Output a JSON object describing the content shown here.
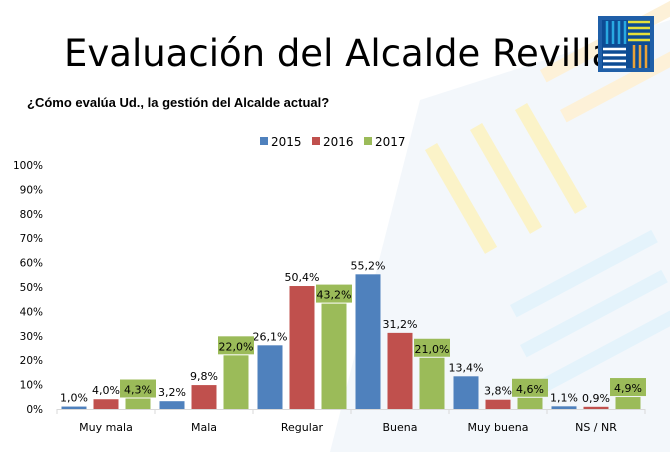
{
  "chart_data": {
    "type": "bar",
    "title": "Evaluación del Alcalde Revilla",
    "subtitle": "¿Cómo evalúa Ud., la gestión del Alcalde actual?",
    "categories": [
      "Muy mala",
      "Mala",
      "Regular",
      "Buena",
      "Muy buena",
      "NS / NR"
    ],
    "series": [
      {
        "name": "2015",
        "color": "#4F81BD",
        "values": [
          1.0,
          3.2,
          26.1,
          55.2,
          13.4,
          1.1
        ],
        "labels": [
          "1,0%",
          "3,2%",
          "26,1%",
          "55,2%",
          "13,4%",
          "1,1%"
        ]
      },
      {
        "name": "2016",
        "color": "#C0504D",
        "values": [
          4.0,
          9.8,
          50.4,
          31.2,
          3.8,
          0.9
        ],
        "labels": [
          "4,0%",
          "9,8%",
          "50,4%",
          "31,2%",
          "3,8%",
          "0,9%"
        ]
      },
      {
        "name": "2017",
        "color": "#9BBB59",
        "values": [
          4.3,
          22.0,
          43.2,
          21.0,
          4.6,
          4.9
        ],
        "labels": [
          "4,3%",
          "22,0%",
          "43,2%",
          "21,0%",
          "4,6%",
          "4,9%"
        ]
      }
    ],
    "yticks": [
      "0%",
      "10%",
      "20%",
      "30%",
      "40%",
      "50%",
      "60%",
      "70%",
      "80%",
      "90%",
      "100%"
    ],
    "ylim": [
      0,
      100
    ],
    "grid": false,
    "legend": "top-center",
    "xlabel": "",
    "ylabel": ""
  },
  "logo": {
    "name": "logo-icon"
  }
}
